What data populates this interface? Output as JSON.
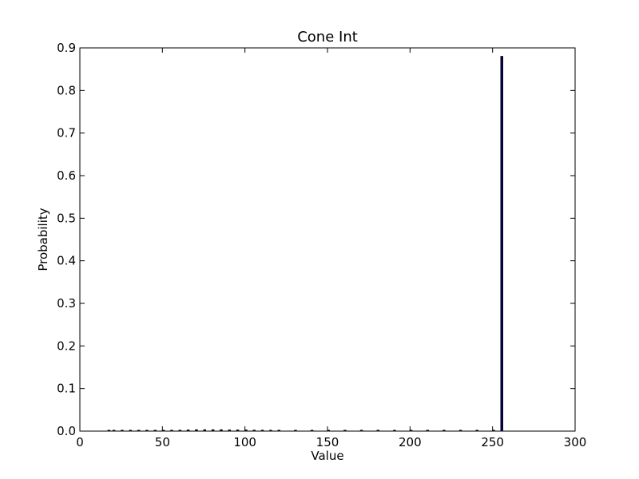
{
  "chart_data": {
    "type": "bar",
    "title": "Cone Int",
    "xlabel": "Value",
    "ylabel": "Probability",
    "xlim": [
      0,
      300
    ],
    "ylim": [
      0,
      0.9
    ],
    "xticks": [
      "0",
      "50",
      "100",
      "150",
      "200",
      "250",
      "300"
    ],
    "yticks": [
      "0.0",
      "0.1",
      "0.2",
      "0.3",
      "0.4",
      "0.5",
      "0.6",
      "0.7",
      "0.8",
      "0.9"
    ],
    "grid": false,
    "legend": "none",
    "bar_color": "#000080",
    "bar_edge_color": "#000000",
    "bars": [
      {
        "x": 17,
        "value": 0.0003
      },
      {
        "x": 20,
        "value": 0.0003
      },
      {
        "x": 25,
        "value": 0.0004
      },
      {
        "x": 30,
        "value": 0.0004
      },
      {
        "x": 35,
        "value": 0.0005
      },
      {
        "x": 40,
        "value": 0.0006
      },
      {
        "x": 45,
        "value": 0.0008
      },
      {
        "x": 50,
        "value": 0.001
      },
      {
        "x": 55,
        "value": 0.0015
      },
      {
        "x": 60,
        "value": 0.002
      },
      {
        "x": 65,
        "value": 0.0025
      },
      {
        "x": 70,
        "value": 0.003
      },
      {
        "x": 75,
        "value": 0.003
      },
      {
        "x": 80,
        "value": 0.003
      },
      {
        "x": 85,
        "value": 0.003
      },
      {
        "x": 90,
        "value": 0.0025
      },
      {
        "x": 95,
        "value": 0.0025
      },
      {
        "x": 100,
        "value": 0.0025
      },
      {
        "x": 105,
        "value": 0.002
      },
      {
        "x": 110,
        "value": 0.002
      },
      {
        "x": 115,
        "value": 0.0015
      },
      {
        "x": 120,
        "value": 0.001
      },
      {
        "x": 130,
        "value": 0.0005
      },
      {
        "x": 140,
        "value": 0.0004
      },
      {
        "x": 150,
        "value": 0.0004
      },
      {
        "x": 160,
        "value": 0.0003
      },
      {
        "x": 170,
        "value": 0.0003
      },
      {
        "x": 180,
        "value": 0.0003
      },
      {
        "x": 190,
        "value": 0.0003
      },
      {
        "x": 200,
        "value": 0.0003
      },
      {
        "x": 210,
        "value": 0.0003
      },
      {
        "x": 220,
        "value": 0.0003
      },
      {
        "x": 230,
        "value": 0.0003
      },
      {
        "x": 240,
        "value": 0.0003
      },
      {
        "x": 250,
        "value": 0.0004
      },
      {
        "x": 255,
        "value": 0.88
      }
    ]
  }
}
